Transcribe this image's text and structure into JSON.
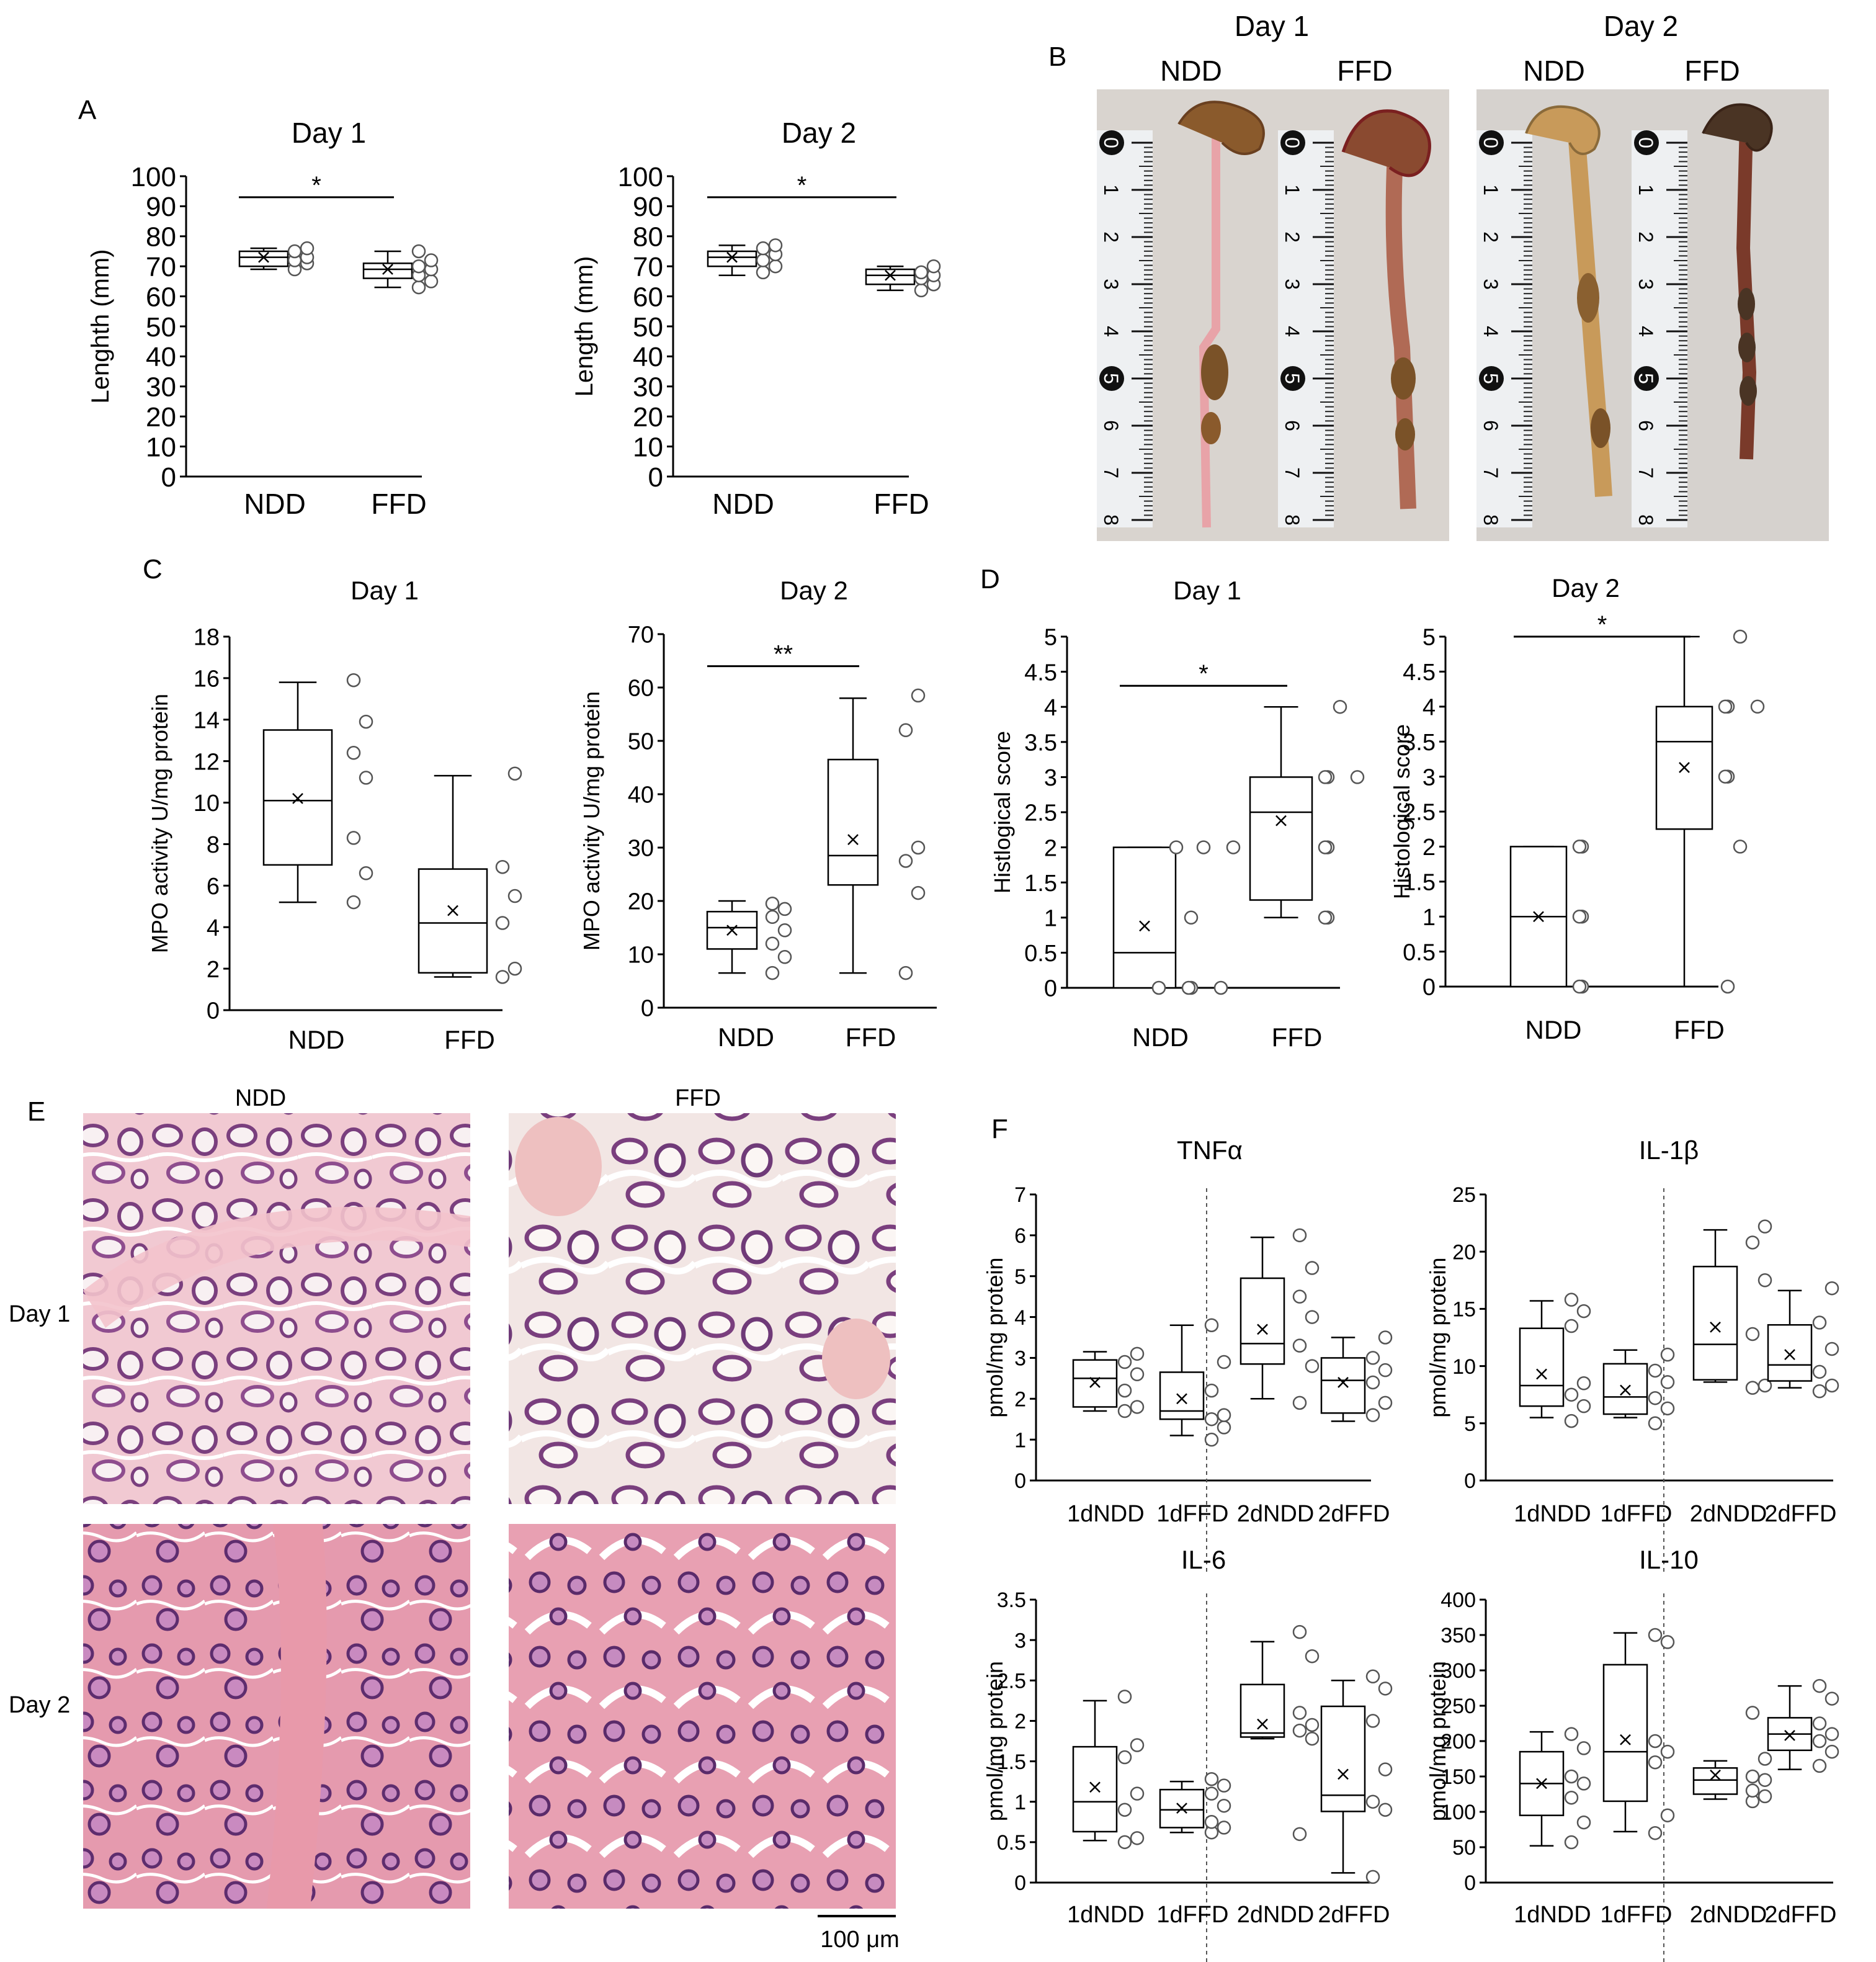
{
  "panel_letters": [
    "A",
    "B",
    "C",
    "D",
    "E",
    "F"
  ],
  "photo_labels": {
    "B_day1": "Day 1",
    "B_day2": "Day 2",
    "B_ndd1": "NDD",
    "B_ffd1": "FFD",
    "B_ndd2": "NDD",
    "B_ffd2": "FFD",
    "E_ndd": "NDD",
    "E_ffd": "FFD",
    "E_day1": "Day 1",
    "E_day2": "Day 2",
    "scale_bar": "100 μm"
  },
  "ruler": {
    "ticks": [
      "0",
      "1",
      "2",
      "3",
      "4",
      "5",
      "6",
      "7",
      "8"
    ]
  },
  "colors": {
    "tissue_pink": "#e8a3b4",
    "tissue_purple": "#7a3f7e",
    "gut_brown": "#8a5a2c",
    "gut_dark": "#4a3424",
    "photo_bg": "#d9d4cf",
    "ruler_face": "#eef0f2"
  },
  "chart_data": [
    {
      "type": "box",
      "panel": "A",
      "title": "Day 1",
      "xlabel": "",
      "ylabel": "Lenghth (mm)",
      "ylim": [
        0,
        100
      ],
      "yticks": [
        "0",
        "10",
        "20",
        "30",
        "40",
        "50",
        "60",
        "70",
        "80",
        "90",
        "100"
      ],
      "categories": [
        "NDD",
        "FFD"
      ],
      "boxes": [
        {
          "min": 69,
          "q1": 70,
          "median": 73,
          "q3": 75,
          "max": 76,
          "mean": 73,
          "points": [
            69,
            71,
            72,
            73,
            75,
            76
          ]
        },
        {
          "min": 63,
          "q1": 66,
          "median": 69,
          "q3": 71,
          "max": 75,
          "mean": 69,
          "points": [
            63,
            65,
            67,
            69,
            70,
            72,
            75
          ]
        }
      ],
      "significance": [
        {
          "from": 0,
          "to": 1,
          "y": 93,
          "label": "*"
        }
      ]
    },
    {
      "type": "box",
      "panel": "A",
      "title": "Day 2",
      "xlabel": "",
      "ylabel": "Length (mm)",
      "ylim": [
        0,
        100
      ],
      "yticks": [
        "0",
        "10",
        "20",
        "30",
        "40",
        "50",
        "60",
        "70",
        "80",
        "90",
        "100"
      ],
      "categories": [
        "NDD",
        "FFD"
      ],
      "boxes": [
        {
          "min": 67,
          "q1": 70,
          "median": 73,
          "q3": 75,
          "max": 77,
          "mean": 73,
          "points": [
            68,
            70,
            72,
            74,
            76,
            77
          ]
        },
        {
          "min": 62,
          "q1": 64,
          "median": 67,
          "q3": 69,
          "max": 70,
          "mean": 67,
          "points": [
            62,
            64,
            66,
            67,
            68,
            70
          ]
        }
      ],
      "significance": [
        {
          "from": 0,
          "to": 1,
          "y": 93,
          "label": "*"
        }
      ]
    },
    {
      "type": "box",
      "panel": "C",
      "title": "Day 1",
      "xlabel": "",
      "ylabel": "MPO activity U/mg protein",
      "ylim": [
        0,
        18
      ],
      "yticks": [
        "0",
        "2",
        "4",
        "6",
        "8",
        "10",
        "12",
        "14",
        "16",
        "18"
      ],
      "categories": [
        "NDD",
        "FFD"
      ],
      "boxes": [
        {
          "min": 5.2,
          "q1": 7.0,
          "median": 10.1,
          "q3": 13.5,
          "max": 15.8,
          "mean": 10.2,
          "points": [
            5.2,
            6.6,
            8.3,
            11.2,
            12.4,
            13.9,
            15.9
          ]
        },
        {
          "min": 1.6,
          "q1": 1.8,
          "median": 4.2,
          "q3": 6.8,
          "max": 11.3,
          "mean": 4.8,
          "points": [
            1.6,
            2.0,
            4.2,
            5.5,
            6.9,
            11.4
          ]
        }
      ],
      "significance": []
    },
    {
      "type": "box",
      "panel": "C",
      "title": "Day 2",
      "xlabel": "",
      "ylabel": "MPO activity U/mg protein",
      "ylim": [
        0,
        70
      ],
      "yticks": [
        "0",
        "10",
        "20",
        "30",
        "40",
        "50",
        "60",
        "70"
      ],
      "categories": [
        "NDD",
        "FFD"
      ],
      "boxes": [
        {
          "min": 6.5,
          "q1": 11,
          "median": 15,
          "q3": 18,
          "max": 20,
          "mean": 14.5,
          "points": [
            6.5,
            9.5,
            12,
            14.5,
            17,
            18.5,
            19.5
          ]
        },
        {
          "min": 6.5,
          "q1": 23,
          "median": 28.5,
          "q3": 46.5,
          "max": 58,
          "mean": 31.5,
          "points": [
            6.5,
            21.5,
            27.5,
            30,
            52,
            58.5
          ]
        }
      ],
      "significance": [
        {
          "from": 0,
          "to": 1,
          "y": 64,
          "label": "**"
        }
      ]
    },
    {
      "type": "box",
      "panel": "D",
      "title": "Day 1",
      "xlabel": "",
      "ylabel": "Histlogical score",
      "ylim": [
        0,
        5
      ],
      "yticks": [
        "0",
        "0.5",
        "1",
        "1.5",
        "2",
        "2.5",
        "3",
        "3.5",
        "4",
        "4.5",
        "5"
      ],
      "categories": [
        "NDD",
        "FFD"
      ],
      "boxes": [
        {
          "min": 0,
          "q1": 0,
          "median": 0.5,
          "q3": 2.0,
          "max": 2.0,
          "mean": 0.88,
          "points": [
            0,
            0,
            0,
            0,
            1,
            2,
            2,
            2
          ]
        },
        {
          "min": 1.0,
          "q1": 1.25,
          "median": 2.5,
          "q3": 3.0,
          "max": 4.0,
          "mean": 2.38,
          "points": [
            1,
            1,
            2,
            2,
            3,
            3,
            3,
            4
          ]
        }
      ],
      "significance": [
        {
          "from": 0,
          "to": 1,
          "y": 4.3,
          "label": "*"
        }
      ]
    },
    {
      "type": "box",
      "panel": "D",
      "title": "Day 2",
      "xlabel": "",
      "ylabel": "Histological score",
      "ylim": [
        0,
        5
      ],
      "yticks": [
        "0",
        "0.5",
        "1",
        "1.5",
        "2",
        "2.5",
        "3",
        "3.5",
        "4",
        "4.5",
        "5"
      ],
      "categories": [
        "NDD",
        "FFD"
      ],
      "boxes": [
        {
          "min": 0,
          "q1": 0,
          "median": 1.0,
          "q3": 2.0,
          "max": 2.0,
          "mean": 1.0,
          "points": [
            0,
            0,
            1,
            1,
            2,
            2
          ]
        },
        {
          "min": 0,
          "q1": 2.25,
          "median": 3.5,
          "q3": 4.0,
          "max": 5.0,
          "mean": 3.13,
          "points": [
            0,
            2,
            3,
            3,
            4,
            4,
            4,
            5
          ]
        }
      ],
      "significance": [
        {
          "from": 0,
          "to": 1,
          "y": 5.0,
          "label": "*"
        }
      ]
    },
    {
      "type": "box",
      "panel": "F",
      "title": "TNFα",
      "xlabel": "",
      "ylabel": "pmol/mg protein",
      "ylim": [
        0,
        7
      ],
      "yticks": [
        "0",
        "1",
        "2",
        "3",
        "4",
        "5",
        "6",
        "7"
      ],
      "categories": [
        "1dNDD",
        "1dFFD",
        "2dNDD",
        "2dFFD"
      ],
      "divider_after": 1,
      "boxes": [
        {
          "min": 1.7,
          "q1": 1.8,
          "median": 2.5,
          "q3": 2.95,
          "max": 3.15,
          "mean": 2.4,
          "points": [
            1.7,
            1.8,
            2.2,
            2.6,
            2.9,
            3.1
          ]
        },
        {
          "min": 1.1,
          "q1": 1.5,
          "median": 1.7,
          "q3": 2.65,
          "max": 3.8,
          "mean": 2.0,
          "points": [
            1.0,
            1.3,
            1.5,
            1.6,
            2.2,
            2.9,
            3.8
          ]
        },
        {
          "min": 2.0,
          "q1": 2.85,
          "median": 3.35,
          "q3": 4.95,
          "max": 5.95,
          "mean": 3.7,
          "points": [
            1.9,
            2.8,
            3.3,
            4.0,
            4.5,
            5.2,
            6.0
          ]
        },
        {
          "min": 1.45,
          "q1": 1.65,
          "median": 2.45,
          "q3": 3.0,
          "max": 3.5,
          "mean": 2.4,
          "points": [
            1.6,
            1.9,
            2.4,
            2.7,
            3.0,
            3.5
          ]
        }
      ],
      "significance": []
    },
    {
      "type": "box",
      "panel": "F",
      "title": "IL-1β",
      "xlabel": "",
      "ylabel": "pmol/mg protein",
      "ylim": [
        0,
        25
      ],
      "yticks": [
        "0",
        "5",
        "10",
        "15",
        "20",
        "25"
      ],
      "categories": [
        "1dNDD",
        "1dFFD",
        "2dNDD",
        "2dFFD"
      ],
      "divider_after": 1,
      "boxes": [
        {
          "min": 5.5,
          "q1": 6.5,
          "median": 8.3,
          "q3": 13.3,
          "max": 15.7,
          "mean": 9.3,
          "points": [
            5.2,
            6.5,
            7.5,
            8.5,
            13.5,
            14.8,
            15.8
          ]
        },
        {
          "min": 5.5,
          "q1": 5.8,
          "median": 7.3,
          "q3": 10.2,
          "max": 11.4,
          "mean": 7.9,
          "points": [
            5.0,
            6.3,
            7.2,
            8.6,
            9.6,
            11.0
          ]
        },
        {
          "min": 8.6,
          "q1": 8.8,
          "median": 11.9,
          "q3": 18.7,
          "max": 21.9,
          "mean": 13.4,
          "points": [
            8.1,
            8.3,
            12.8,
            17.5,
            20.8,
            22.2
          ]
        },
        {
          "min": 8.1,
          "q1": 8.7,
          "median": 10.1,
          "q3": 13.6,
          "max": 16.6,
          "mean": 11.0,
          "points": [
            7.8,
            8.3,
            9.5,
            11.5,
            13.8,
            16.8
          ]
        }
      ],
      "significance": []
    },
    {
      "type": "box",
      "panel": "F",
      "title": "IL-6",
      "xlabel": "",
      "ylabel": "pmol/mg protein",
      "ylim": [
        0,
        3.5
      ],
      "yticks": [
        "0",
        "0.5",
        "1",
        "1.5",
        "2",
        "2.5",
        "3",
        "3.5"
      ],
      "categories": [
        "1dNDD",
        "1dFFD",
        "2dNDD",
        "2dFFD"
      ],
      "divider_after": 1,
      "boxes": [
        {
          "min": 0.52,
          "q1": 0.63,
          "median": 1.0,
          "q3": 1.68,
          "max": 2.25,
          "mean": 1.18,
          "points": [
            0.5,
            0.55,
            0.9,
            1.1,
            1.55,
            1.7,
            2.3
          ]
        },
        {
          "min": 0.62,
          "q1": 0.68,
          "median": 0.9,
          "q3": 1.15,
          "max": 1.25,
          "mean": 0.92,
          "points": [
            0.62,
            0.68,
            0.75,
            0.95,
            1.1,
            1.2,
            1.28
          ]
        },
        {
          "min": 1.78,
          "q1": 1.8,
          "median": 1.85,
          "q3": 2.45,
          "max": 2.98,
          "mean": 1.96,
          "points": [
            0.6,
            1.78,
            1.88,
            1.95,
            2.1,
            2.8,
            3.1
          ]
        },
        {
          "min": 0.12,
          "q1": 0.88,
          "median": 1.08,
          "q3": 2.18,
          "max": 2.5,
          "mean": 1.34,
          "points": [
            0.07,
            0.9,
            1.0,
            1.4,
            2.0,
            2.4,
            2.55
          ]
        }
      ],
      "significance": []
    },
    {
      "type": "box",
      "panel": "F",
      "title": "IL-10",
      "xlabel": "",
      "ylabel": "pmol/mg protein",
      "ylim": [
        0,
        400
      ],
      "yticks": [
        "0",
        "50",
        "100",
        "150",
        "200",
        "250",
        "300",
        "350",
        "400"
      ],
      "categories": [
        "1dNDD",
        "1dFFD",
        "2dNDD",
        "2dFFD"
      ],
      "divider_after": 1,
      "boxes": [
        {
          "min": 52,
          "q1": 95,
          "median": 140,
          "q3": 185,
          "max": 213,
          "mean": 140,
          "points": [
            57,
            85,
            120,
            140,
            150,
            190,
            210
          ]
        },
        {
          "min": 72,
          "q1": 115,
          "median": 185,
          "q3": 308,
          "max": 353,
          "mean": 202,
          "points": [
            70,
            95,
            170,
            185,
            200,
            340,
            350
          ]
        },
        {
          "min": 118,
          "q1": 125,
          "median": 145,
          "q3": 162,
          "max": 172,
          "mean": 152,
          "points": [
            115,
            122,
            130,
            145,
            150,
            175,
            240
          ]
        },
        {
          "min": 160,
          "q1": 187,
          "median": 210,
          "q3": 233,
          "max": 278,
          "mean": 208,
          "points": [
            165,
            185,
            200,
            210,
            225,
            260,
            278
          ]
        }
      ],
      "significance": []
    }
  ]
}
